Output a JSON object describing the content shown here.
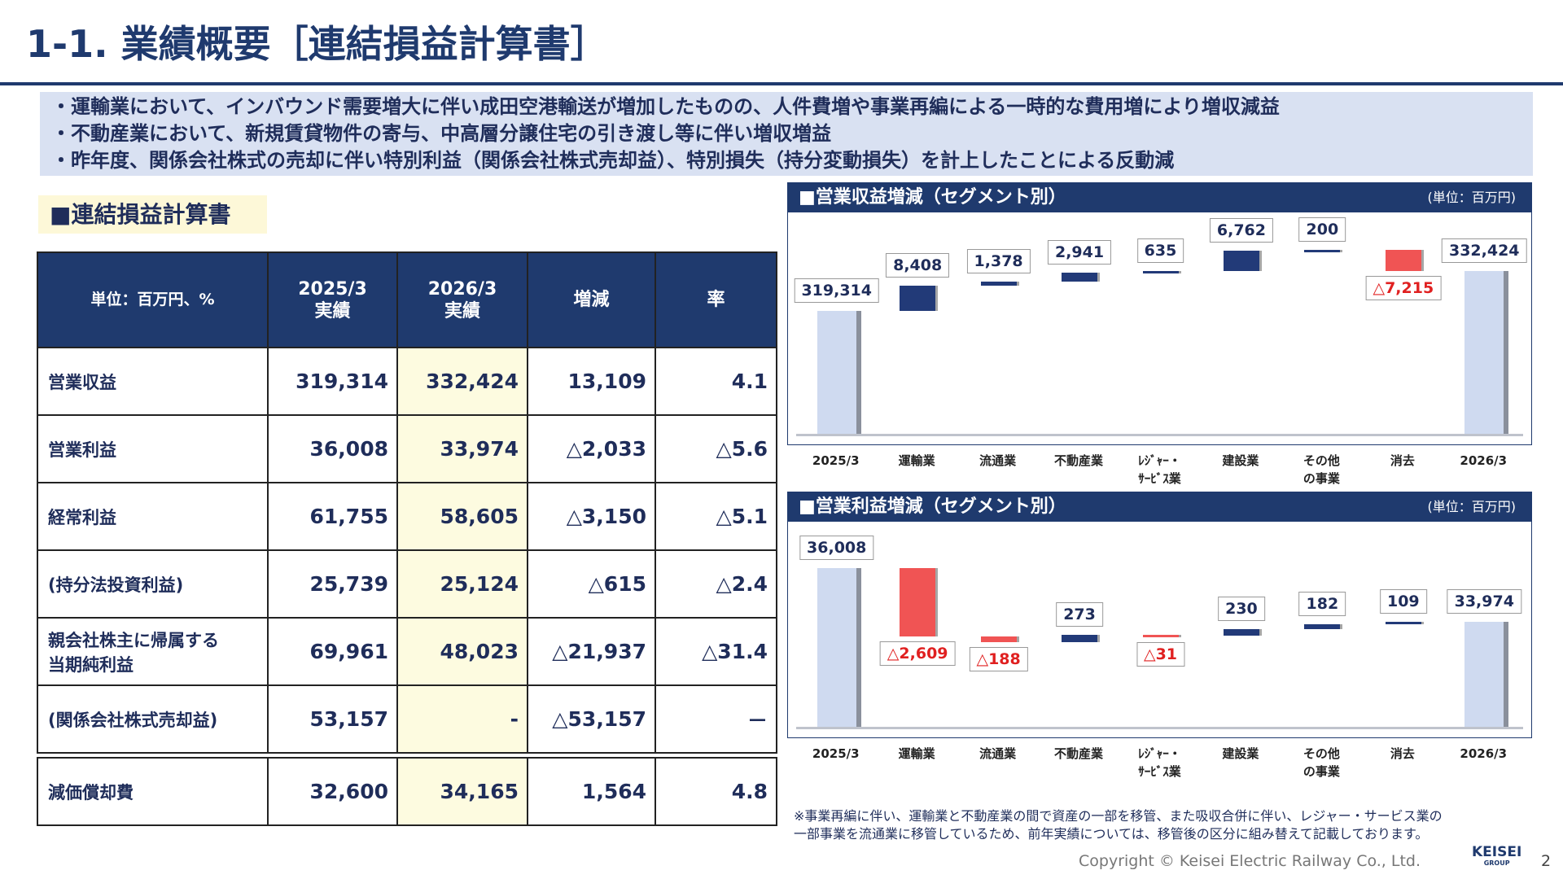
{
  "title": "1-1. 業績概要［連結損益計算書］",
  "bullets": [
    "・運輸業において、インバウンド需要増大に伴い成田空港輸送が増加したものの、人件費増や事業再編による一時的な費用増により増収減益",
    "・不動産業において、新規賃貸物件の寄与、中高層分譲住宅の引き渡し等に伴い増収増益",
    "・昨年度、関係会社株式の売却に伴い特別利益（関係会社株式売却益）、特別損失（持分変動損失）を計上したことによる反動減"
  ],
  "section_title": "■連結損益計算書",
  "table": {
    "header": [
      "単位：百万円、%",
      "2025/3\n実績",
      "2026/3\n実績",
      "増減",
      "率"
    ],
    "rows": [
      [
        "営業収益",
        "319,314",
        "332,424",
        "13,109",
        "4.1"
      ],
      [
        "営業利益",
        "36,008",
        "33,974",
        "△2,033",
        "△5.6"
      ],
      [
        "経常利益",
        "61,755",
        "58,605",
        "△3,150",
        "△5.1"
      ],
      [
        "(持分法投資利益)",
        "25,739",
        "25,124",
        "△615",
        "△2.4"
      ],
      [
        "親会社株主に帰属する\n当期純利益",
        "69,961",
        "48,023",
        "△21,937",
        "△31.4"
      ],
      [
        "(関係会社株式売却益)",
        "53,157",
        "-",
        "△53,157",
        "－"
      ],
      [
        "減価償却費",
        "32,600",
        "34,165",
        "1,564",
        "4.8"
      ]
    ]
  },
  "chart_data": [
    {
      "type": "waterfall",
      "title": "■営業収益増減（セグメント別）",
      "unit": "(単位：百万円)",
      "categories": [
        "2025/3",
        "運輸業",
        "流通業",
        "不動産業",
        "ﾚｼﾞｬｰ・\nｻｰﾋﾞｽ業",
        "建設業",
        "その他\nの事業",
        "消去",
        "2026/3"
      ],
      "values": [
        319314,
        8408,
        1378,
        2941,
        635,
        6762,
        200,
        -7215,
        332424
      ],
      "value_labels": [
        "319,314",
        "8,408",
        "1,378",
        "2,941",
        "635",
        "6,762",
        "200",
        "△7,215",
        "332,424"
      ],
      "ylim": [
        278000,
        350000
      ],
      "total_color": "#cfdaf0",
      "up_color": "#223a78",
      "down_color": "#f05454"
    },
    {
      "type": "waterfall",
      "title": "■営業利益増減（セグメント別）",
      "unit": "(単位：百万円)",
      "categories": [
        "2025/3",
        "運輸業",
        "流通業",
        "不動産業",
        "ﾚｼﾞｬｰ・\nｻｰﾋﾞｽ業",
        "建設業",
        "その他\nの事業",
        "消去",
        "2026/3"
      ],
      "values": [
        36008,
        -2609,
        -188,
        273,
        -31,
        230,
        182,
        109,
        33974
      ],
      "value_labels": [
        "36,008",
        "△2,609",
        "△188",
        "273",
        "△31",
        "230",
        "182",
        "109",
        "33,974"
      ],
      "ylim": [
        30000,
        37500
      ],
      "total_color": "#cfdaf0",
      "up_color": "#223a78",
      "down_color": "#f05454"
    }
  ],
  "footnote": "※事業再編に伴い、運輸業と不動産業の間で資産の一部を移管、また吸収合併に伴い、レジャー・サービス業の\n一部事業を流通業に移管しているため、前年実績については、移管後の区分に組み替えて記載しております。",
  "copyright": "Copyright ©  Keisei Electric Railway Co., Ltd.",
  "logo": "KEISEI",
  "logo_sub": "GROUP",
  "page": "2"
}
